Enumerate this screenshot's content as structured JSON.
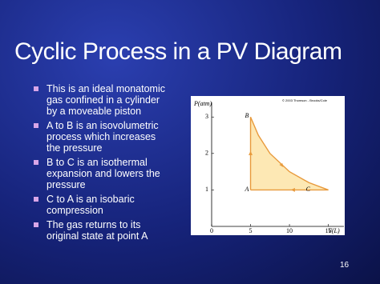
{
  "slide": {
    "title": "Cyclic Process in a PV Diagram",
    "bullets": [
      "This is an ideal monatomic gas confined in a cylinder by a moveable piston",
      "A to B is an isovolumetric process which increases the pressure",
      "B to C is an isothermal expansion and lowers the pressure",
      "C to A is an isobaric compression",
      "The gas returns to its original state at point A"
    ],
    "page_number": "16"
  },
  "chart_data": {
    "type": "line",
    "x_label": "V(L)",
    "y_label": "P(atm)",
    "credit": "© 2003 Thomson - Brooks/Cole",
    "x": [
      5,
      5,
      6,
      7.5,
      10,
      12.5,
      15,
      5
    ],
    "series": [
      {
        "color": "#e89a3c",
        "values": [
          1,
          3,
          2.5,
          2,
          1.5,
          1.2,
          1,
          1
        ]
      }
    ],
    "points": [
      {
        "label": "A",
        "x": 5,
        "y": 1
      },
      {
        "label": "B",
        "x": 5,
        "y": 3
      },
      {
        "label": "C",
        "x": 15,
        "y": 1
      }
    ],
    "xlim": [
      0,
      17
    ],
    "ylim": [
      0,
      3.4
    ],
    "xticks": [
      0,
      5,
      10,
      15
    ],
    "yticks": [
      1,
      2,
      3
    ]
  }
}
